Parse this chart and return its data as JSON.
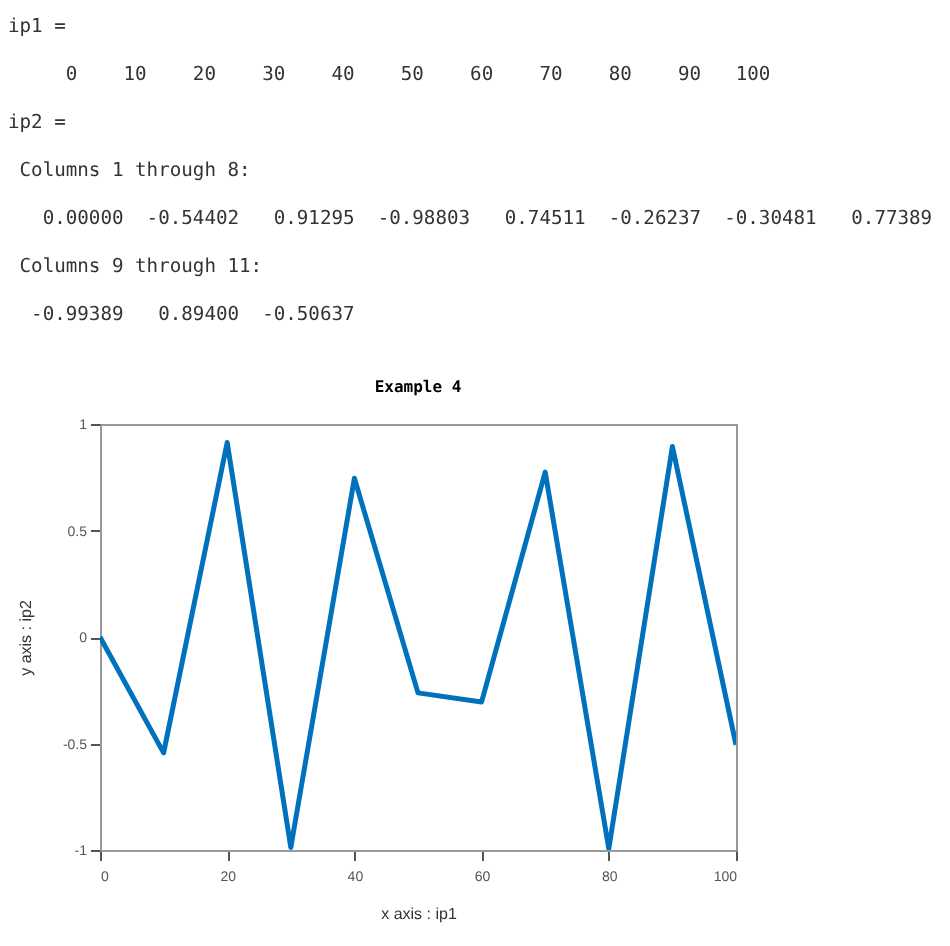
{
  "chart_data": {
    "type": "line",
    "title": "Example 4",
    "xlabel": "x axis : ip1",
    "ylabel": "y axis : ip2",
    "annotations": [
      "ip1 =",
      "     0    10    20    30    40    50    60    70    80    90   100",
      "ip2 =",
      " Columns 1 through 8:",
      "   0.00000  -0.54402   0.91295  -0.98803   0.74511  -0.26237  -0.30481   0.77389",
      " Columns 9 through 11:",
      "  -0.99389   0.89400  -0.50637"
    ],
    "x": [
      0,
      10,
      20,
      30,
      40,
      50,
      60,
      70,
      80,
      90,
      100
    ],
    "series": [
      {
        "color": "#0072bd",
        "values": [
          0.0,
          -0.54402,
          0.91295,
          -0.98803,
          0.74511,
          -0.26237,
          -0.30481,
          0.77389,
          -0.99389,
          0.894,
          -0.50637
        ]
      }
    ],
    "xlim": [
      0,
      100
    ],
    "xticks": [
      0,
      20,
      40,
      60,
      80,
      100
    ],
    "ylim": [
      -1,
      1
    ],
    "yticks": [
      -1,
      -0.5,
      0,
      0.5,
      1
    ],
    "grid": false,
    "marker": "none",
    "line_style": "solid"
  }
}
